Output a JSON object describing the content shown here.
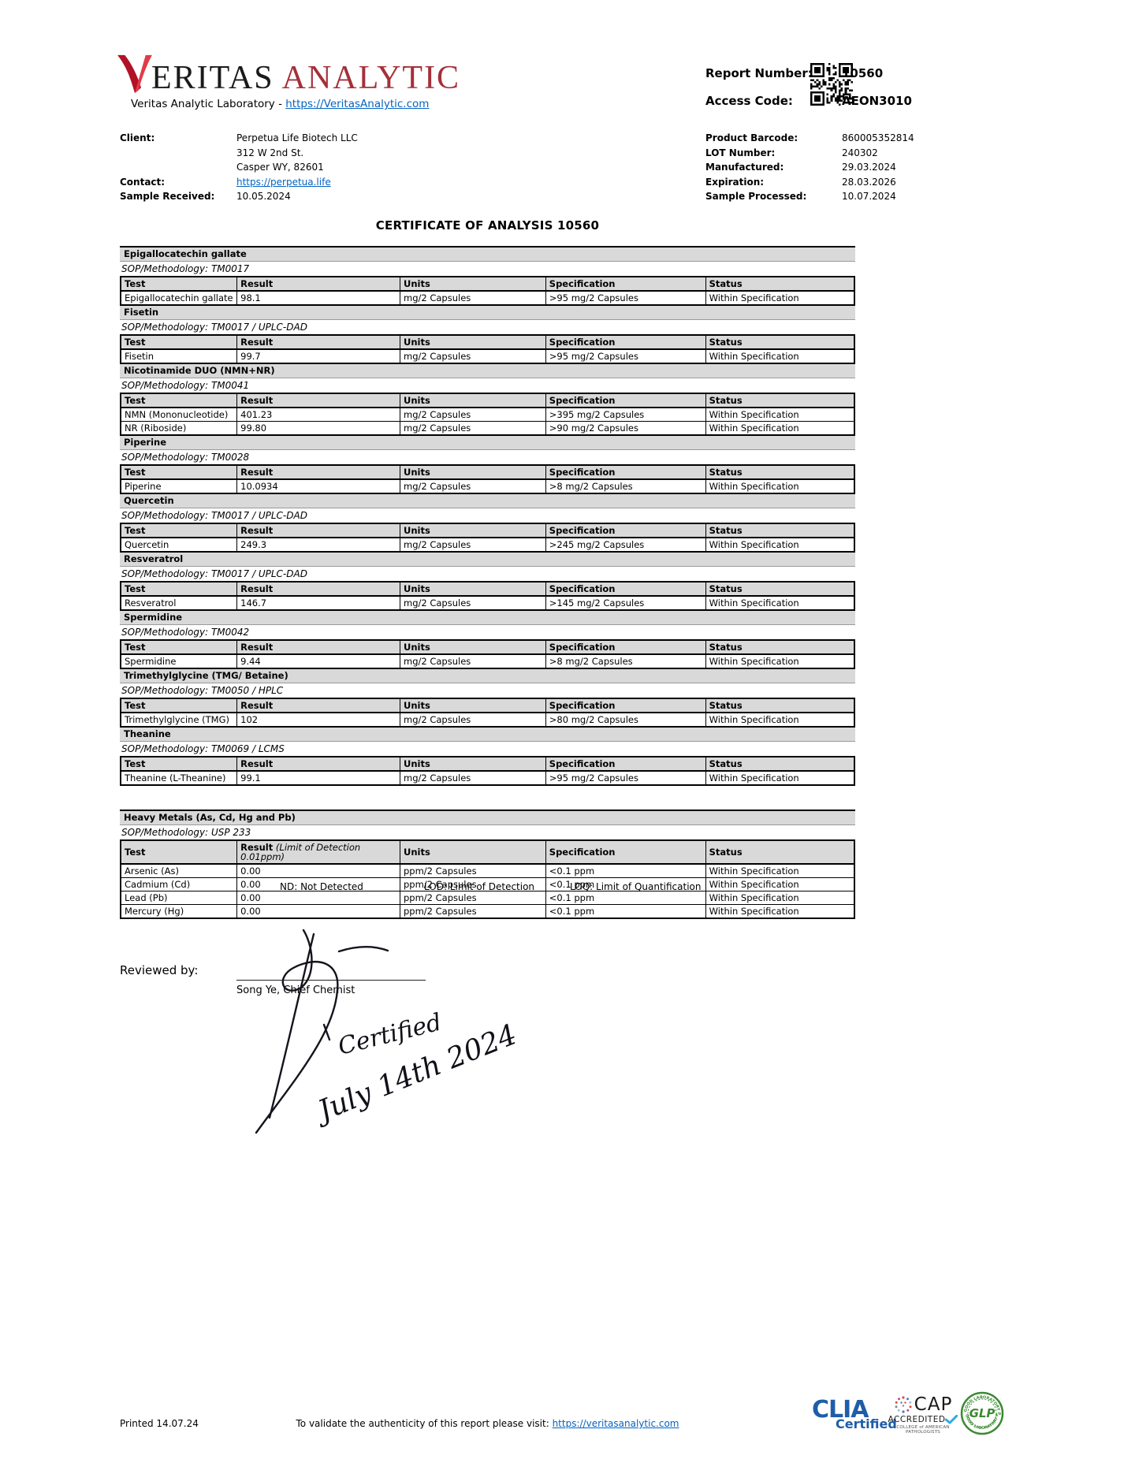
{
  "header": {
    "logo": {
      "eritas": "ERITAS",
      "analytic": "ANALYTIC",
      "tagline_prefix": "Veritas Analytic Laboratory - ",
      "tagline_link": "https://VeritasAnalytic.com"
    },
    "report_number_label": "Report Number:",
    "report_number": "10560",
    "access_code_label": "Access Code:",
    "access_code": "AEON3010"
  },
  "info": {
    "client_label": "Client:",
    "client_name": "Perpetua Life Biotech LLC",
    "client_addr1": "312 W 2nd St.",
    "client_addr2": "Casper WY, 82601",
    "contact_label": "Contact:",
    "contact_value": "https://perpetua.life",
    "sample_received_label": "Sample Received:",
    "sample_received_value": "10.05.2024",
    "right": [
      {
        "label": "Product Barcode:",
        "value": "860005352814"
      },
      {
        "label": "LOT Number:",
        "value": "240302"
      },
      {
        "label": "Manufactured:",
        "value": "29.03.2024"
      },
      {
        "label": "Expiration:",
        "value": "28.03.2026"
      },
      {
        "label": "Sample Processed:",
        "value": "10.07.2024"
      }
    ]
  },
  "title": "CERTIFICATE OF ANALYSIS 10560",
  "table_headers": [
    "Test",
    "Result",
    "Units",
    "Specification",
    "Status"
  ],
  "sections": [
    {
      "name": "Epigallocatechin gallate",
      "sop": "SOP/Methodology: TM0017",
      "rows": [
        [
          "Epigallocatechin gallate",
          "98.1",
          "mg/2 Capsules",
          ">95 mg/2 Capsules",
          "Within Specification"
        ]
      ]
    },
    {
      "name": "Fisetin",
      "sop": "SOP/Methodology: TM0017 / UPLC-DAD",
      "rows": [
        [
          "Fisetin",
          "99.7",
          "mg/2 Capsules",
          ">95 mg/2 Capsules",
          "Within Specification"
        ]
      ]
    },
    {
      "name": "Nicotinamide DUO (NMN+NR)",
      "sop": "SOP/Methodology: TM0041",
      "rows": [
        [
          "NMN (Mononucleotide)",
          "401.23",
          "mg/2 Capsules",
          ">395 mg/2 Capsules",
          "Within Specification"
        ],
        [
          "NR (Riboside)",
          "99.80",
          "mg/2 Capsules",
          ">90 mg/2 Capsules",
          "Within Specification"
        ]
      ]
    },
    {
      "name": "Piperine",
      "sop": "SOP/Methodology: TM0028",
      "rows": [
        [
          "Piperine",
          "10.0934",
          "mg/2 Capsules",
          ">8 mg/2 Capsules",
          "Within Specification"
        ]
      ]
    },
    {
      "name": "Quercetin",
      "sop": "SOP/Methodology: TM0017 / UPLC-DAD",
      "rows": [
        [
          "Quercetin",
          "249.3",
          "mg/2 Capsules",
          ">245 mg/2 Capsules",
          "Within Specification"
        ]
      ]
    },
    {
      "name": "Resveratrol",
      "sop": "SOP/Methodology: TM0017 / UPLC-DAD",
      "rows": [
        [
          "Resveratrol",
          "146.7",
          "mg/2 Capsules",
          ">145 mg/2 Capsules",
          "Within Specification"
        ]
      ]
    },
    {
      "name": "Spermidine",
      "sop": "SOP/Methodology: TM0042",
      "rows": [
        [
          "Spermidine",
          "9.44",
          "mg/2 Capsules",
          ">8 mg/2 Capsules",
          "Within Specification"
        ]
      ]
    },
    {
      "name": "Trimethylglycine (TMG/ Betaine)",
      "sop": "SOP/Methodology: TM0050 / HPLC",
      "rows": [
        [
          "Trimethylglycine (TMG)",
          "102",
          "mg/2 Capsules",
          ">80 mg/2 Capsules",
          "Within Specification"
        ]
      ]
    },
    {
      "name": "Theanine",
      "sop": "SOP/Methodology: TM0069 / LCMS",
      "rows": [
        [
          "Theanine (L-Theanine)",
          "99.1",
          "mg/2 Capsules",
          ">95 mg/2 Capsules",
          "Within Specification"
        ]
      ]
    },
    {
      "name": "Heavy Metals (As, Cd, Hg and Pb)",
      "sop": "SOP/Methodology: USP 233",
      "gap_before": true,
      "result_note": "(Limit of Detection 0.01ppm)",
      "rows": [
        [
          "Arsenic (As)",
          "0.00",
          "ppm/2 Capsules",
          "<0.1 ppm",
          "Within Specification"
        ],
        [
          "Cadmium (Cd)",
          "0.00",
          "ppm/2 Capsules",
          "<0.1 ppm",
          "Within Specification"
        ],
        [
          "Lead (Pb)",
          "0.00",
          "ppm/2 Capsules",
          "<0.1 ppm",
          "Within Specification"
        ],
        [
          "Mercury (Hg)",
          "0.00",
          "ppm/2 Capsules",
          "<0.1 ppm",
          "Within Specification"
        ]
      ]
    }
  ],
  "legend": [
    "ND: Not Detected",
    "LOD: Limit of Detection",
    "LOQ: Limit of Quantification"
  ],
  "signature": {
    "reviewed_by_label": "Reviewed by:",
    "name": "Song Ye, Chief Chemist",
    "handwritten1": "Certified",
    "handwritten2": "July 14th 2024"
  },
  "footer": {
    "printed": "Printed 14.07.24",
    "validate_prefix": "To validate the authenticity of this report please visit: ",
    "validate_link": "https://veritasanalytic.com",
    "clia": {
      "line1": "CLIA",
      "line2": "Certified"
    },
    "cap": {
      "line1": "CAP",
      "line2": "ACCREDITED",
      "line3": "COLLEGE of AMERICAN PATHOLOGISTS"
    },
    "glp": {
      "center": "GLP",
      "around": "GOOD LABORATORY PRACTICE"
    }
  },
  "colors": {
    "logo_red_dark": "#b11226",
    "logo_red_light": "#e23b47",
    "logo_analytic": "#a43039",
    "link_blue": "#0563c1",
    "band_gray": "#d9d9d9",
    "clia_blue": "#1f5da8",
    "cap_check_blue": "#2aace2",
    "glp_green": "#3a8a30"
  }
}
